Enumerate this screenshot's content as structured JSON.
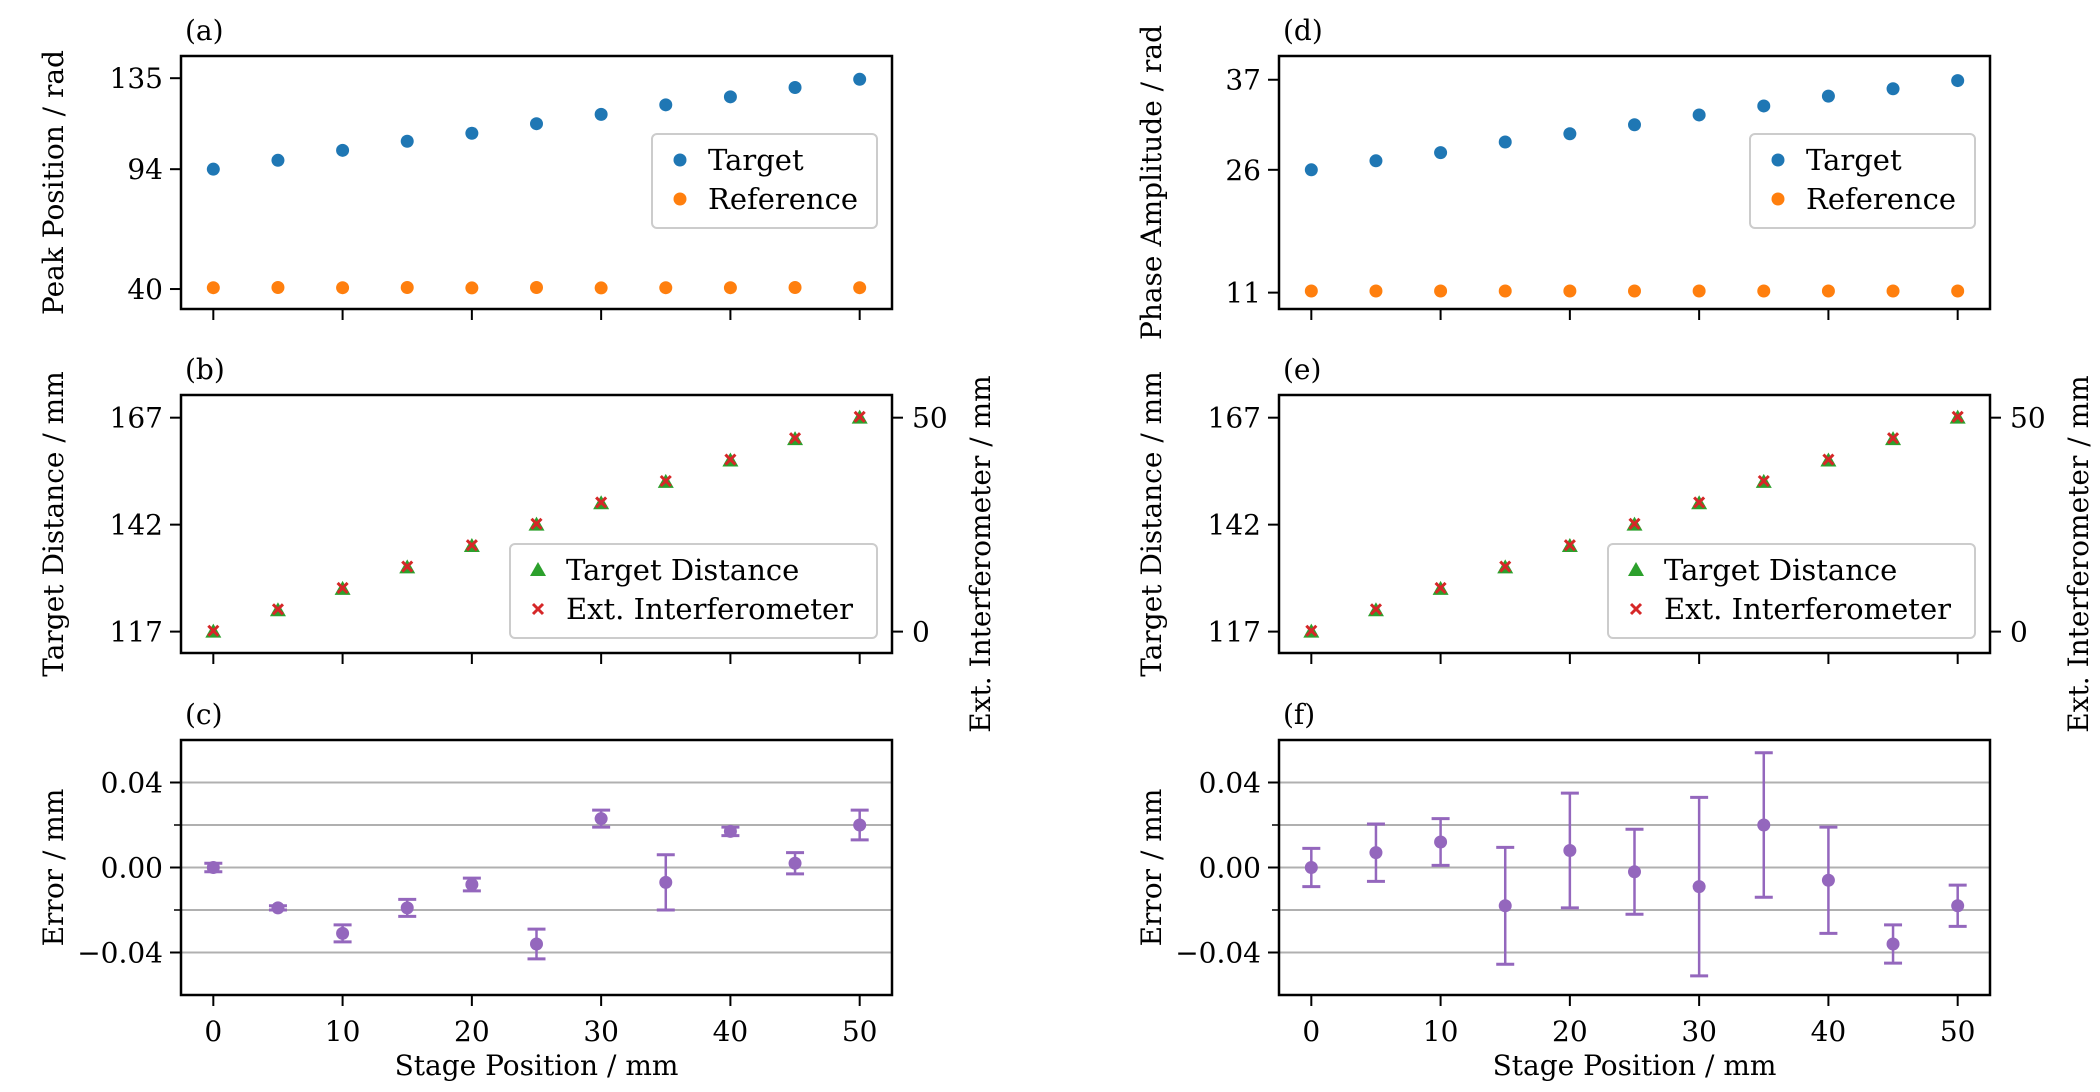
{
  "colors": {
    "target": "#1f77b4",
    "reference": "#ff7f0e",
    "distance": "#2ca02c",
    "interferometer": "#d62728",
    "error": "#9467bd",
    "grid": "#b0b0b0"
  },
  "chart_data": [
    {
      "panel_label": "(a)",
      "type": "scatter",
      "xlabel": "",
      "ylabel": "Peak Position / rad",
      "xlim": [
        -2.5,
        52.5
      ],
      "ylim": [
        31,
        145
      ],
      "xticks": [
        0,
        10,
        20,
        30,
        40,
        50
      ],
      "xtick_labels_shown": false,
      "yticks": [
        40,
        94,
        135
      ],
      "ytick_labels": [
        "40",
        "94",
        "135"
      ],
      "legend": "right",
      "grid": false,
      "x": [
        0,
        5,
        10,
        15,
        20,
        25,
        30,
        35,
        40,
        45,
        50
      ],
      "series": [
        {
          "name": "Target",
          "marker": "circle",
          "color": "#1f77b4",
          "values": [
            94,
            98,
            102.5,
            106.6,
            110.2,
            114.5,
            118.7,
            123,
            126.6,
            130.8,
            134.5
          ]
        },
        {
          "name": "Reference",
          "marker": "circle",
          "color": "#ff7f0e",
          "values": [
            40.6,
            40.7,
            40.6,
            40.7,
            40.5,
            40.7,
            40.5,
            40.6,
            40.6,
            40.7,
            40.6
          ]
        }
      ]
    },
    {
      "panel_label": "(b)",
      "type": "scatter",
      "xlabel": "",
      "ylabel": "Target Distance / mm",
      "ylabel_right": "Ext. Interferometer / mm",
      "xlim": [
        -2.5,
        52.5
      ],
      "ylim": [
        112,
        172.3
      ],
      "xticks": [
        0,
        10,
        20,
        30,
        40,
        50
      ],
      "xtick_labels_shown": false,
      "yticks": [
        117,
        142,
        167
      ],
      "ytick_labels": [
        "117",
        "142",
        "167"
      ],
      "yticks_right": [
        0,
        50
      ],
      "ytick_labels_right": [
        "0",
        "50"
      ],
      "right_axis_offset": 117,
      "legend": "lower right",
      "grid": false,
      "x": [
        0,
        5,
        10,
        15,
        20,
        25,
        30,
        35,
        40,
        45,
        50
      ],
      "series": [
        {
          "name": "Target Distance",
          "marker": "triangle",
          "color": "#2ca02c",
          "values": [
            117,
            122,
            127,
            132,
            137,
            142,
            147,
            152,
            157,
            162,
            167
          ]
        },
        {
          "name": "Ext. Interferometer",
          "marker": "x",
          "color": "#d62728",
          "values": [
            117.2,
            122.2,
            127.2,
            132.2,
            137.2,
            142.2,
            147.2,
            152.2,
            157.2,
            162.2,
            167.2
          ]
        }
      ]
    },
    {
      "panel_label": "(c)",
      "type": "errorbar",
      "xlabel": "Stage Position / mm",
      "ylabel": "Error / mm",
      "xlim": [
        -2.5,
        52.5
      ],
      "ylim": [
        -0.06,
        0.06
      ],
      "xticks": [
        0,
        10,
        20,
        30,
        40,
        50
      ],
      "xtick_labels": [
        "0",
        "10",
        "20",
        "30",
        "40",
        "50"
      ],
      "xtick_labels_shown": true,
      "yticks": [
        -0.04,
        0.0,
        0.04
      ],
      "ytick_labels": [
        "−0.04",
        "0.00",
        "0.04"
      ],
      "grid_lines": [
        -0.04,
        -0.02,
        0.0,
        0.02,
        0.04
      ],
      "grid": true,
      "x": [
        0,
        5,
        10,
        15,
        20,
        25,
        30,
        35,
        40,
        45,
        50
      ],
      "series": [
        {
          "color": "#9467bd",
          "values": [
            0.0,
            -0.019,
            -0.031,
            -0.019,
            -0.008,
            -0.036,
            0.023,
            -0.007,
            0.017,
            0.002,
            0.02
          ],
          "errors": [
            0.002,
            0.001,
            0.004,
            0.004,
            0.003,
            0.007,
            0.004,
            0.013,
            0.002,
            0.005,
            0.007
          ]
        }
      ]
    },
    {
      "panel_label": "(d)",
      "type": "scatter",
      "xlabel": "",
      "ylabel": "Phase Amplitude / rad",
      "xlim": [
        -2.5,
        52.5
      ],
      "ylim": [
        9,
        39.9
      ],
      "xticks": [
        0,
        10,
        20,
        30,
        40,
        50
      ],
      "xtick_labels_shown": false,
      "yticks": [
        11,
        26,
        37
      ],
      "ytick_labels": [
        "11",
        "26",
        "37"
      ],
      "legend": "right",
      "grid": false,
      "x": [
        0,
        5,
        10,
        15,
        20,
        25,
        30,
        35,
        40,
        45,
        50
      ],
      "series": [
        {
          "name": "Target",
          "marker": "circle",
          "color": "#1f77b4",
          "values": [
            26,
            27.1,
            28.1,
            29.4,
            30.4,
            31.5,
            32.7,
            33.8,
            35,
            35.9,
            36.9
          ]
        },
        {
          "name": "Reference",
          "marker": "circle",
          "color": "#ff7f0e",
          "values": [
            11.2,
            11.2,
            11.2,
            11.2,
            11.2,
            11.2,
            11.2,
            11.2,
            11.2,
            11.2,
            11.2
          ]
        }
      ]
    },
    {
      "panel_label": "(e)",
      "type": "scatter",
      "xlabel": "",
      "ylabel": "Target Distance / mm",
      "ylabel_right": "Ext. Interferometer / mm",
      "xlim": [
        -2.5,
        52.5
      ],
      "ylim": [
        112,
        172.3
      ],
      "xticks": [
        0,
        10,
        20,
        30,
        40,
        50
      ],
      "xtick_labels_shown": false,
      "yticks": [
        117,
        142,
        167
      ],
      "ytick_labels": [
        "117",
        "142",
        "167"
      ],
      "yticks_right": [
        0,
        50
      ],
      "ytick_labels_right": [
        "0",
        "50"
      ],
      "right_axis_offset": 117,
      "legend": "lower right",
      "grid": false,
      "x": [
        0,
        5,
        10,
        15,
        20,
        25,
        30,
        35,
        40,
        45,
        50
      ],
      "series": [
        {
          "name": "Target Distance",
          "marker": "triangle",
          "color": "#2ca02c",
          "values": [
            117,
            122,
            127,
            132,
            137,
            142,
            147,
            152,
            157,
            162,
            167
          ]
        },
        {
          "name": "Ext. Interferometer",
          "marker": "x",
          "color": "#d62728",
          "values": [
            117.2,
            122.2,
            127.2,
            132.2,
            137.2,
            142.2,
            147.2,
            152.2,
            157.2,
            162.2,
            167.2
          ]
        }
      ]
    },
    {
      "panel_label": "(f)",
      "type": "errorbar",
      "xlabel": "Stage Position / mm",
      "ylabel": "Error / mm",
      "xlim": [
        -2.5,
        52.5
      ],
      "ylim": [
        -0.06,
        0.06
      ],
      "xticks": [
        0,
        10,
        20,
        30,
        40,
        50
      ],
      "xtick_labels": [
        "0",
        "10",
        "20",
        "30",
        "40",
        "50"
      ],
      "xtick_labels_shown": true,
      "yticks": [
        -0.04,
        0.0,
        0.04
      ],
      "ytick_labels": [
        "−0.04",
        "0.00",
        "0.04"
      ],
      "grid_lines": [
        -0.04,
        -0.02,
        0.0,
        0.02,
        0.04
      ],
      "grid": true,
      "x": [
        0,
        5,
        10,
        15,
        20,
        25,
        30,
        35,
        40,
        45,
        50
      ],
      "series": [
        {
          "color": "#9467bd",
          "values": [
            0.0,
            0.007,
            0.012,
            -0.018,
            0.008,
            -0.002,
            -0.009,
            0.02,
            -0.006,
            -0.036,
            -0.018
          ],
          "errors": [
            0.009,
            0.0135,
            0.011,
            0.0275,
            0.027,
            0.02,
            0.042,
            0.034,
            0.025,
            0.009,
            0.0097
          ]
        }
      ]
    }
  ]
}
